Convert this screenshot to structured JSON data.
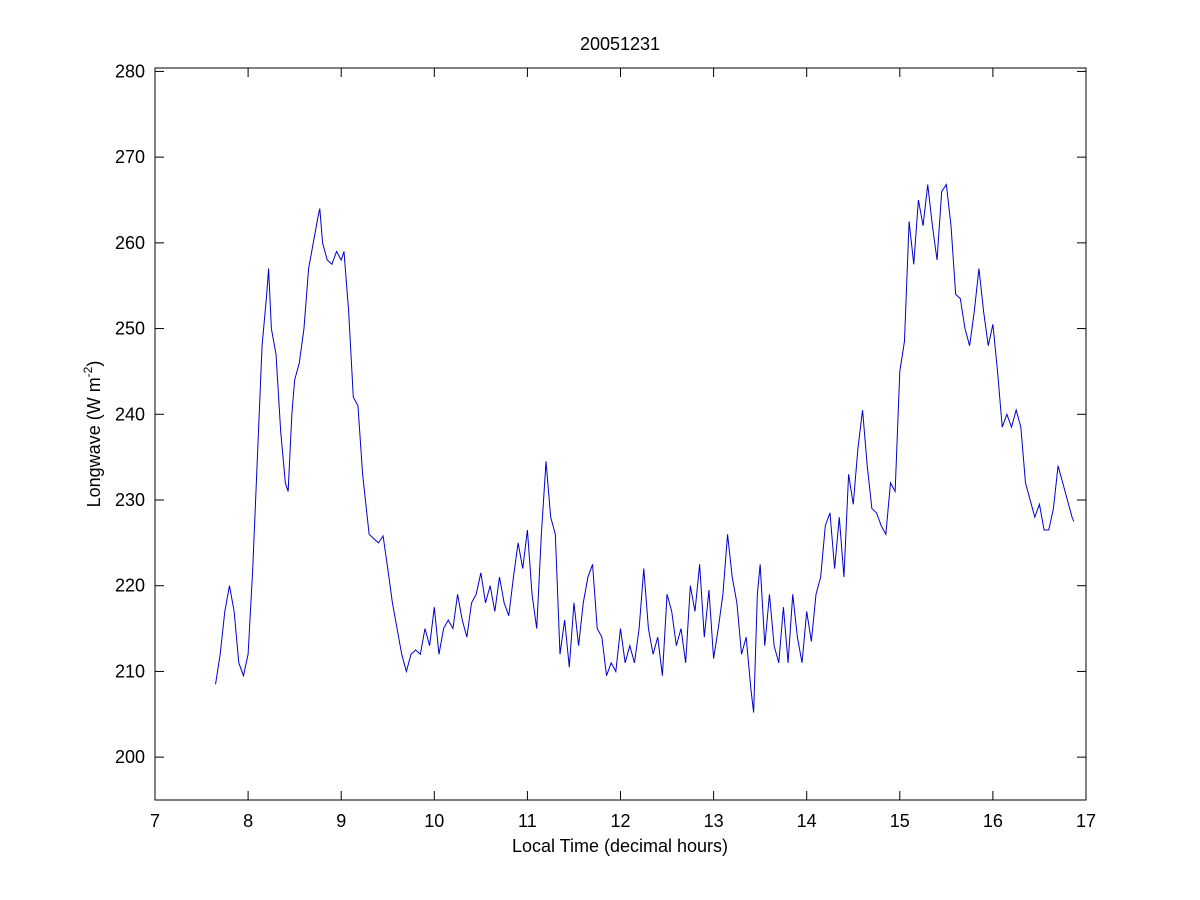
{
  "chart_data": {
    "type": "line",
    "title": "20051231",
    "x_label": "Local Time (decimal hours)",
    "y_label": {
      "text": "Longwave (W m",
      "superscript": "-2",
      "suffix": ")"
    },
    "xlim": [
      7,
      17
    ],
    "xticks": [
      7,
      8,
      9,
      10,
      11,
      12,
      13,
      14,
      15,
      16,
      17
    ],
    "ylim": [
      195,
      280.4
    ],
    "yticks": [
      200,
      210,
      220,
      230,
      240,
      250,
      260,
      270,
      280
    ],
    "grid": false,
    "x": [
      7.65,
      7.7,
      7.75,
      7.8,
      7.85,
      7.9,
      7.95,
      8.0,
      8.05,
      8.1,
      8.15,
      8.2,
      8.22,
      8.25,
      8.3,
      8.35,
      8.4,
      8.43,
      8.47,
      8.5,
      8.55,
      8.6,
      8.65,
      8.7,
      8.75,
      8.77,
      8.8,
      8.85,
      8.9,
      8.95,
      9.0,
      9.03,
      9.08,
      9.13,
      9.18,
      9.23,
      9.3,
      9.35,
      9.4,
      9.45,
      9.5,
      9.55,
      9.6,
      9.65,
      9.7,
      9.75,
      9.8,
      9.85,
      9.9,
      9.95,
      10.0,
      10.05,
      10.1,
      10.15,
      10.2,
      10.25,
      10.3,
      10.35,
      10.4,
      10.45,
      10.5,
      10.55,
      10.6,
      10.65,
      10.7,
      10.75,
      10.8,
      10.85,
      10.9,
      10.95,
      11.0,
      11.05,
      11.1,
      11.15,
      11.2,
      11.25,
      11.3,
      11.35,
      11.4,
      11.45,
      11.5,
      11.55,
      11.6,
      11.65,
      11.7,
      11.75,
      11.8,
      11.85,
      11.9,
      11.95,
      12.0,
      12.05,
      12.1,
      12.15,
      12.2,
      12.25,
      12.3,
      12.35,
      12.4,
      12.45,
      12.5,
      12.55,
      12.6,
      12.65,
      12.7,
      12.75,
      12.8,
      12.85,
      12.9,
      12.95,
      13.0,
      13.05,
      13.1,
      13.15,
      13.2,
      13.25,
      13.3,
      13.35,
      13.4,
      13.43,
      13.47,
      13.5,
      13.55,
      13.6,
      13.65,
      13.7,
      13.75,
      13.8,
      13.85,
      13.9,
      13.95,
      14.0,
      14.05,
      14.1,
      14.15,
      14.2,
      14.25,
      14.3,
      14.35,
      14.4,
      14.45,
      14.5,
      14.55,
      14.6,
      14.65,
      14.7,
      14.75,
      14.8,
      14.85,
      14.9,
      14.95,
      15.0,
      15.05,
      15.1,
      15.15,
      15.2,
      15.25,
      15.3,
      15.35,
      15.4,
      15.45,
      15.5,
      15.55,
      15.6,
      15.65,
      15.7,
      15.75,
      15.8,
      15.85,
      15.9,
      15.95,
      16.0,
      16.05,
      16.1,
      16.15,
      16.2,
      16.25,
      16.3,
      16.35,
      16.4,
      16.45,
      16.5,
      16.55,
      16.6,
      16.65,
      16.7,
      16.75,
      16.8,
      16.85,
      16.87
    ],
    "series": [
      {
        "color": "#0000cc",
        "values": [
          208.5,
          212,
          217,
          220,
          217,
          211,
          209.5,
          212,
          222,
          235,
          248,
          254,
          257,
          250,
          247,
          238,
          232,
          231,
          240,
          244,
          246,
          250,
          257,
          260,
          263,
          264,
          260,
          258,
          257.5,
          259,
          258,
          259,
          252,
          242,
          241,
          233,
          226,
          225.5,
          225,
          225.8,
          222,
          218,
          215,
          212,
          210,
          212,
          212.5,
          212,
          215,
          213,
          217.5,
          212,
          215,
          216,
          215,
          219,
          216,
          214,
          218,
          219,
          221.5,
          218,
          220,
          217,
          221,
          218,
          216.5,
          221,
          225,
          222,
          226.5,
          219,
          215,
          226,
          234.5,
          228,
          226,
          212,
          216,
          210.5,
          218,
          213,
          218,
          221,
          222.5,
          215,
          214,
          209.5,
          211,
          210,
          215,
          211,
          213,
          211,
          215,
          222,
          215,
          212,
          214,
          209.5,
          219,
          217,
          213,
          215,
          211,
          220,
          217,
          222.5,
          214,
          219.5,
          211.5,
          215,
          219,
          226,
          221,
          218,
          212,
          214,
          208,
          205.2,
          219,
          222.5,
          213,
          219,
          213,
          211,
          217.5,
          211,
          219,
          214,
          211,
          217,
          213.5,
          219,
          221,
          227,
          228.5,
          222,
          228,
          221,
          233,
          229.5,
          236,
          240.5,
          234,
          229,
          228.5,
          227,
          226,
          232,
          231,
          245,
          248.5,
          262.5,
          257.5,
          265,
          262,
          266.8,
          262,
          258,
          266,
          266.8,
          262,
          254,
          253.5,
          250,
          248,
          252,
          257,
          252,
          248,
          250.5,
          245,
          238.5,
          240,
          238.5,
          240.5,
          238.5,
          232,
          230,
          228,
          229.5,
          226.5,
          226.5,
          229,
          234,
          232,
          230,
          228,
          227.5
        ]
      }
    ]
  }
}
